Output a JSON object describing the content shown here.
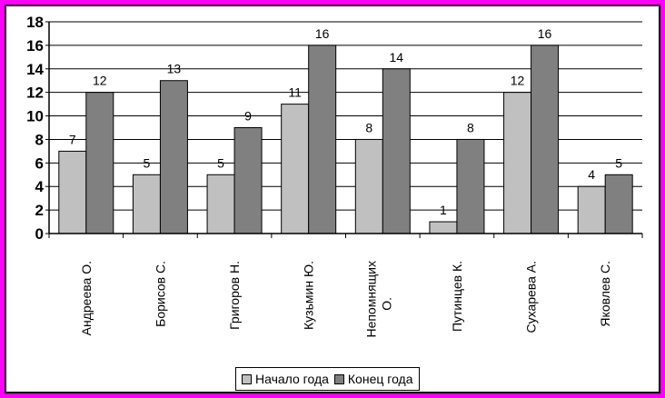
{
  "chart_data": {
    "type": "bar",
    "categories": [
      "Андреева О.",
      "Борисов С.",
      "Григоров Н.",
      "Кузьмин Ю.",
      "Непомнящих О.",
      "Путинцев К.",
      "Сухарева А.",
      "Яковлев С."
    ],
    "category_lines": [
      [
        "Андреева О."
      ],
      [
        "Борисов С."
      ],
      [
        "Григоров Н."
      ],
      [
        "Кузьмин Ю."
      ],
      [
        "Непомнящих",
        "О."
      ],
      [
        "Путинцев К."
      ],
      [
        "Сухарева А."
      ],
      [
        "Яковлев С."
      ]
    ],
    "series": [
      {
        "name": "Начало года",
        "color": "#c0c0c0",
        "values": [
          7,
          5,
          5,
          11,
          8,
          1,
          12,
          4
        ]
      },
      {
        "name": "Конец года",
        "color": "#808080",
        "values": [
          12,
          13,
          9,
          16,
          14,
          8,
          16,
          5
        ]
      }
    ],
    "y_ticks": [
      "0",
      "2",
      "4",
      "6",
      "8",
      "10",
      "12",
      "14",
      "16",
      "18"
    ],
    "ylim": [
      0,
      18
    ],
    "grid": true,
    "legend_position": "bottom",
    "title": "",
    "xlabel": "",
    "ylabel": ""
  }
}
